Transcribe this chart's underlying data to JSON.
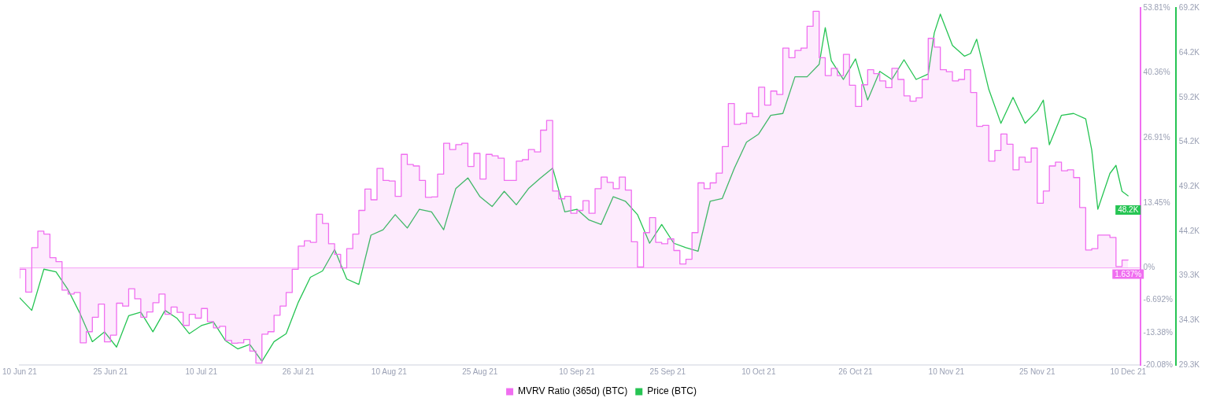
{
  "chart_data": {
    "type": "line",
    "legend": "bottom",
    "grid": false,
    "marker": "none",
    "xlim": [
      "2021-06-10",
      "2021-12-12"
    ],
    "xticks": [
      {
        "value": "2021-06-10",
        "label": "10 Jun 21"
      },
      {
        "value": "2021-06-25",
        "label": "25 Jun 21"
      },
      {
        "value": "2021-07-10",
        "label": "10 Jul 21"
      },
      {
        "value": "2021-07-26",
        "label": "26 Jul 21"
      },
      {
        "value": "2021-08-10",
        "label": "10 Aug 21"
      },
      {
        "value": "2021-08-25",
        "label": "25 Aug 21"
      },
      {
        "value": "2021-09-10",
        "label": "10 Sep 21"
      },
      {
        "value": "2021-09-25",
        "label": "25 Sep 21"
      },
      {
        "value": "2021-10-10",
        "label": "10 Oct 21"
      },
      {
        "value": "2021-10-26",
        "label": "26 Oct 21"
      },
      {
        "value": "2021-11-10",
        "label": "10 Nov 21"
      },
      {
        "value": "2021-11-25",
        "label": "25 Nov 21"
      },
      {
        "value": "2021-12-10",
        "label": "10 Dec 21"
      }
    ],
    "ylim": [
      -20.08,
      53.81
    ],
    "yticks": [
      {
        "value": -20.08,
        "label": "-20.08%"
      },
      {
        "value": -13.38,
        "label": "-13.38%"
      },
      {
        "value": -6.692,
        "label": "-6.692%"
      },
      {
        "value": 0,
        "label": "0%"
      },
      {
        "value": 13.45,
        "label": "13.45%"
      },
      {
        "value": 26.91,
        "label": "26.91%"
      },
      {
        "value": 40.36,
        "label": "40.36%"
      },
      {
        "value": 53.81,
        "label": "53.81%"
      }
    ],
    "y2lim": [
      29300,
      69200
    ],
    "y2ticks": [
      {
        "value": 29300,
        "label": "29.3K"
      },
      {
        "value": 34300,
        "label": "34.3K"
      },
      {
        "value": 39300,
        "label": "39.3K"
      },
      {
        "value": 44200,
        "label": "44.2K"
      },
      {
        "value": 49200,
        "label": "49.2K"
      },
      {
        "value": 54200,
        "label": "54.2K"
      },
      {
        "value": 59200,
        "label": "59.2K"
      },
      {
        "value": 64200,
        "label": "64.2K"
      },
      {
        "value": 69200,
        "label": "69.2K"
      }
    ],
    "ref_lines": [
      {
        "axis": "y",
        "value": 0,
        "color": "#f7a8f7"
      }
    ],
    "series": [
      {
        "name": "MVRV Ratio (365d) (BTC)",
        "type": "step",
        "color": "#f06ef0",
        "x": [
          "2021-06-10",
          "2021-06-11",
          "2021-06-12",
          "2021-06-13",
          "2021-06-14",
          "2021-06-15",
          "2021-06-16",
          "2021-06-17",
          "2021-06-18",
          "2021-06-19",
          "2021-06-20",
          "2021-06-21",
          "2021-06-22",
          "2021-06-23",
          "2021-06-24",
          "2021-06-25",
          "2021-06-26",
          "2021-06-27",
          "2021-06-28",
          "2021-06-29",
          "2021-06-30",
          "2021-07-01",
          "2021-07-02",
          "2021-07-03",
          "2021-07-04",
          "2021-07-05",
          "2021-07-06",
          "2021-07-07",
          "2021-07-08",
          "2021-07-09",
          "2021-07-10",
          "2021-07-11",
          "2021-07-12",
          "2021-07-13",
          "2021-07-14",
          "2021-07-15",
          "2021-07-16",
          "2021-07-17",
          "2021-07-18",
          "2021-07-19",
          "2021-07-20",
          "2021-07-21",
          "2021-07-22",
          "2021-07-23",
          "2021-07-24",
          "2021-07-25",
          "2021-07-26",
          "2021-07-27",
          "2021-07-28",
          "2021-07-29",
          "2021-07-30",
          "2021-07-31",
          "2021-08-01",
          "2021-08-02",
          "2021-08-03",
          "2021-08-04",
          "2021-08-05",
          "2021-08-06",
          "2021-08-07",
          "2021-08-08",
          "2021-08-09",
          "2021-08-10",
          "2021-08-11",
          "2021-08-12",
          "2021-08-13",
          "2021-08-14",
          "2021-08-15",
          "2021-08-16",
          "2021-08-17",
          "2021-08-18",
          "2021-08-19",
          "2021-08-20",
          "2021-08-21",
          "2021-08-22",
          "2021-08-23",
          "2021-08-24",
          "2021-08-25",
          "2021-08-26",
          "2021-08-27",
          "2021-08-28",
          "2021-08-29",
          "2021-08-30",
          "2021-08-31",
          "2021-09-01",
          "2021-09-02",
          "2021-09-03",
          "2021-09-04",
          "2021-09-05",
          "2021-09-06",
          "2021-09-07",
          "2021-09-08",
          "2021-09-09",
          "2021-09-10",
          "2021-09-11",
          "2021-09-12",
          "2021-09-13",
          "2021-09-14",
          "2021-09-15",
          "2021-09-16",
          "2021-09-17",
          "2021-09-18",
          "2021-09-19",
          "2021-09-20",
          "2021-09-21",
          "2021-09-22",
          "2021-09-23",
          "2021-09-24",
          "2021-09-25",
          "2021-09-26",
          "2021-09-27",
          "2021-09-28",
          "2021-09-29",
          "2021-09-30",
          "2021-10-01",
          "2021-10-02",
          "2021-10-03",
          "2021-10-04",
          "2021-10-05",
          "2021-10-06",
          "2021-10-07",
          "2021-10-08",
          "2021-10-09",
          "2021-10-10",
          "2021-10-11",
          "2021-10-12",
          "2021-10-13",
          "2021-10-14",
          "2021-10-15",
          "2021-10-16",
          "2021-10-17",
          "2021-10-18",
          "2021-10-19",
          "2021-10-20",
          "2021-10-21",
          "2021-10-22",
          "2021-10-23",
          "2021-10-24",
          "2021-10-25",
          "2021-10-26",
          "2021-10-27",
          "2021-10-28",
          "2021-10-29",
          "2021-10-30",
          "2021-10-31",
          "2021-11-01",
          "2021-11-02",
          "2021-11-03",
          "2021-11-04",
          "2021-11-05",
          "2021-11-06",
          "2021-11-07",
          "2021-11-08",
          "2021-11-09",
          "2021-11-10",
          "2021-11-11",
          "2021-11-12",
          "2021-11-13",
          "2021-11-14",
          "2021-11-15",
          "2021-11-16",
          "2021-11-17",
          "2021-11-18",
          "2021-11-19",
          "2021-11-20",
          "2021-11-21",
          "2021-11-22",
          "2021-11-23",
          "2021-11-24",
          "2021-11-25",
          "2021-11-26",
          "2021-11-27",
          "2021-11-28",
          "2021-11-29",
          "2021-11-30",
          "2021-12-01",
          "2021-12-02",
          "2021-12-03",
          "2021-12-04",
          "2021-12-05",
          "2021-12-06",
          "2021-12-07",
          "2021-12-08",
          "2021-12-09",
          "2021-12-10"
        ],
        "values": [
          -2.1,
          -0.3,
          -5.0,
          4.2,
          7.6,
          7.0,
          2.1,
          1.3,
          -4.6,
          -5.4,
          -5.1,
          -15.5,
          -13.2,
          -10.2,
          -7.5,
          -15.3,
          -13.9,
          -7.3,
          -7.9,
          -4.3,
          -6.4,
          -10.2,
          -9.1,
          -7.2,
          -5.4,
          -9.6,
          -8.1,
          -9.2,
          -11.9,
          -9.6,
          -10.4,
          -8.4,
          -11.1,
          -12.4,
          -12.1,
          -15.0,
          -15.6,
          -15.5,
          -14.8,
          -17.2,
          -19.7,
          -13.7,
          -13.2,
          -9.8,
          -7.9,
          -5.1,
          -0.3,
          4.5,
          5.6,
          5.3,
          11.1,
          9.2,
          5.0,
          2.8,
          0.0,
          4.0,
          7.0,
          11.9,
          16.3,
          14.1,
          20.6,
          18.1,
          18.0,
          14.8,
          23.5,
          21.4,
          21.1,
          18.1,
          14.6,
          14.7,
          19.4,
          25.8,
          24.5,
          25.5,
          25.8,
          21.0,
          23.7,
          18.4,
          23.5,
          23.2,
          22.7,
          18.1,
          18.1,
          22.1,
          22.4,
          24.5,
          24.0,
          28.5,
          30.5,
          15.9,
          14.3,
          14.8,
          11.3,
          11.9,
          13.9,
          11.3,
          16.4,
          18.8,
          17.7,
          16.4,
          18.8,
          16.1,
          5.4,
          0.2,
          7.3,
          10.4,
          5.3,
          5.0,
          6.0,
          3.6,
          0.8,
          1.8,
          7.3,
          17.6,
          16.4,
          17.6,
          19.6,
          25.1,
          34.0,
          29.7,
          29.9,
          32.0,
          31.3,
          37.4,
          33.7,
          36.6,
          35.9,
          45.5,
          43.5,
          45.0,
          45.5,
          50.0,
          53.1,
          43.5,
          39.8,
          41.3,
          39.8,
          44.2,
          37.8,
          33.4,
          37.9,
          41.0,
          40.2,
          38.7,
          37.3,
          41.3,
          39.0,
          35.6,
          34.5,
          35.2,
          39.0,
          47.5,
          45.7,
          41.0,
          40.6,
          38.7,
          39.0,
          41.0,
          36.3,
          29.3,
          29.5,
          22.1,
          24.3,
          27.7,
          25.6,
          20.3,
          22.9,
          21.9,
          24.8,
          13.4,
          15.9,
          21.1,
          21.9,
          20.1,
          20.3,
          18.7,
          12.5,
          3.7,
          4.0,
          6.8,
          6.8,
          6.3,
          0.3,
          1.637
        ],
        "value_labels": [
          null,
          null,
          null,
          null,
          null,
          null,
          null,
          null,
          null,
          null,
          null,
          null,
          null,
          null,
          null,
          null,
          null,
          null,
          null,
          null,
          null,
          null,
          null,
          null,
          null,
          null,
          null,
          null,
          null,
          null,
          null,
          null,
          null,
          null,
          null,
          null,
          null,
          null,
          null,
          null,
          null,
          null,
          null,
          null,
          null,
          null,
          null,
          null,
          null,
          null,
          null,
          null,
          null,
          null,
          null,
          null,
          null,
          null,
          null,
          null,
          null,
          null,
          null,
          null,
          null,
          null,
          null,
          null,
          null,
          null,
          null,
          null,
          null,
          null,
          null,
          null,
          null,
          null,
          null,
          null,
          null,
          null,
          null,
          null,
          null,
          null,
          null,
          null,
          null,
          null,
          null,
          null,
          null,
          null,
          null,
          null,
          null,
          null,
          null,
          null,
          null,
          null,
          null,
          null,
          null,
          null,
          null,
          null,
          null,
          null,
          null,
          null,
          null,
          null,
          null,
          null,
          null,
          null,
          null,
          null,
          null,
          null,
          null,
          null,
          null,
          null,
          null,
          null,
          null,
          null,
          null,
          null,
          null,
          null,
          null,
          null,
          null,
          null,
          null,
          null,
          null,
          null,
          null,
          null,
          null,
          null,
          null,
          null,
          null,
          null,
          null,
          null,
          null,
          null,
          null,
          null,
          null,
          null,
          null,
          null,
          null,
          null,
          null,
          null,
          null,
          null,
          null,
          null,
          null,
          null,
          null,
          null,
          null,
          null,
          null,
          null,
          null,
          null,
          null,
          null,
          null,
          null,
          null,
          "1.637%"
        ]
      },
      {
        "name": "Price (BTC)",
        "type": "line",
        "axis": "y2",
        "color": "#26c453",
        "x": [
          "2021-06-10",
          "2021-06-12",
          "2021-06-14",
          "2021-06-16",
          "2021-06-18",
          "2021-06-20",
          "2021-06-22",
          "2021-06-24",
          "2021-06-26",
          "2021-06-28",
          "2021-06-30",
          "2021-07-02",
          "2021-07-04",
          "2021-07-06",
          "2021-07-08",
          "2021-07-10",
          "2021-07-12",
          "2021-07-14",
          "2021-07-16",
          "2021-07-18",
          "2021-07-20",
          "2021-07-22",
          "2021-07-24",
          "2021-07-26",
          "2021-07-28",
          "2021-07-30",
          "2021-08-01",
          "2021-08-03",
          "2021-08-05",
          "2021-08-07",
          "2021-08-09",
          "2021-08-11",
          "2021-08-13",
          "2021-08-15",
          "2021-08-17",
          "2021-08-19",
          "2021-08-21",
          "2021-08-23",
          "2021-08-25",
          "2021-08-27",
          "2021-08-29",
          "2021-08-31",
          "2021-09-02",
          "2021-09-04",
          "2021-09-06",
          "2021-09-08",
          "2021-09-10",
          "2021-09-12",
          "2021-09-14",
          "2021-09-16",
          "2021-09-18",
          "2021-09-20",
          "2021-09-22",
          "2021-09-24",
          "2021-09-26",
          "2021-09-28",
          "2021-09-30",
          "2021-10-02",
          "2021-10-04",
          "2021-10-06",
          "2021-10-08",
          "2021-10-10",
          "2021-10-12",
          "2021-10-14",
          "2021-10-16",
          "2021-10-18",
          "2021-10-20",
          "2021-10-21",
          "2021-10-22",
          "2021-10-24",
          "2021-10-26",
          "2021-10-28",
          "2021-10-30",
          "2021-11-01",
          "2021-11-03",
          "2021-11-05",
          "2021-11-07",
          "2021-11-08",
          "2021-11-09",
          "2021-11-11",
          "2021-11-13",
          "2021-11-14",
          "2021-11-15",
          "2021-11-17",
          "2021-11-19",
          "2021-11-21",
          "2021-11-23",
          "2021-11-25",
          "2021-11-26",
          "2021-11-27",
          "2021-11-29",
          "2021-12-01",
          "2021-12-03",
          "2021-12-04",
          "2021-12-05",
          "2021-12-07",
          "2021-12-08",
          "2021-12-09",
          "2021-12-10"
        ],
        "values": [
          36800,
          35400,
          40000,
          39700,
          37700,
          35000,
          31900,
          33000,
          31300,
          34800,
          35200,
          33000,
          35400,
          34500,
          32800,
          33700,
          34100,
          32000,
          31100,
          31600,
          29700,
          31900,
          32800,
          36300,
          39100,
          39800,
          42200,
          38900,
          38300,
          43800,
          44400,
          46100,
          44600,
          46700,
          46400,
          44400,
          49000,
          50200,
          48100,
          47000,
          48700,
          47200,
          49000,
          50200,
          51300,
          46400,
          46700,
          45500,
          45000,
          48100,
          47600,
          46100,
          42900,
          45000,
          42900,
          42400,
          42000,
          47600,
          47900,
          51300,
          54200,
          55100,
          57200,
          57400,
          61500,
          61500,
          62900,
          67000,
          63300,
          61200,
          63500,
          58900,
          62100,
          61200,
          63400,
          61200,
          61800,
          66400,
          68500,
          65000,
          63800,
          64100,
          65700,
          60100,
          56300,
          59200,
          56300,
          57700,
          58900,
          53900,
          57200,
          57400,
          56800,
          53300,
          46700,
          50700,
          51600,
          48700,
          48200
        ],
        "value_labels": [
          null,
          null,
          null,
          null,
          null,
          null,
          null,
          null,
          null,
          null,
          null,
          null,
          null,
          null,
          null,
          null,
          null,
          null,
          null,
          null,
          null,
          null,
          null,
          null,
          null,
          null,
          null,
          null,
          null,
          null,
          null,
          null,
          null,
          null,
          null,
          null,
          null,
          null,
          null,
          null,
          null,
          null,
          null,
          null,
          null,
          null,
          null,
          null,
          null,
          null,
          null,
          null,
          null,
          null,
          null,
          null,
          null,
          null,
          null,
          null,
          null,
          null,
          null,
          null,
          null,
          null,
          null,
          null,
          null,
          null,
          null,
          null,
          null,
          null,
          null,
          null,
          null,
          null,
          null,
          null,
          null,
          null,
          null,
          null,
          null,
          null,
          null,
          null,
          null,
          null,
          null,
          null,
          null,
          null,
          null,
          null,
          null,
          null,
          "48.2K"
        ]
      }
    ]
  }
}
